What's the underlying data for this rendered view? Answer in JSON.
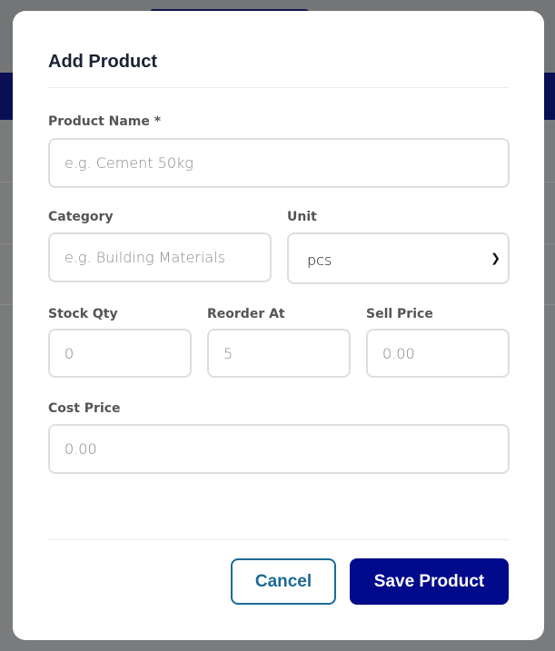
{
  "modal": {
    "title": "Add Product",
    "fields": {
      "product_name": {
        "label": "Product Name *",
        "placeholder": "e.g. Cement 50kg"
      },
      "category": {
        "label": "Category",
        "placeholder": "e.g. Building Materials"
      },
      "unit": {
        "label": "Unit",
        "value": "pcs"
      },
      "stock_qty": {
        "label": "Stock Qty",
        "placeholder": "0"
      },
      "reorder_at": {
        "label": "Reorder At",
        "placeholder": "5"
      },
      "sell_price": {
        "label": "Sell Price",
        "placeholder": "0.00"
      },
      "cost_price": {
        "label": "Cost Price",
        "placeholder": "0.00"
      }
    },
    "buttons": {
      "cancel": "Cancel",
      "save": "Save Product"
    }
  },
  "colors": {
    "primary": "#000a8a",
    "secondary": "#1c6a96",
    "backdrop": "#7a7b7d"
  }
}
